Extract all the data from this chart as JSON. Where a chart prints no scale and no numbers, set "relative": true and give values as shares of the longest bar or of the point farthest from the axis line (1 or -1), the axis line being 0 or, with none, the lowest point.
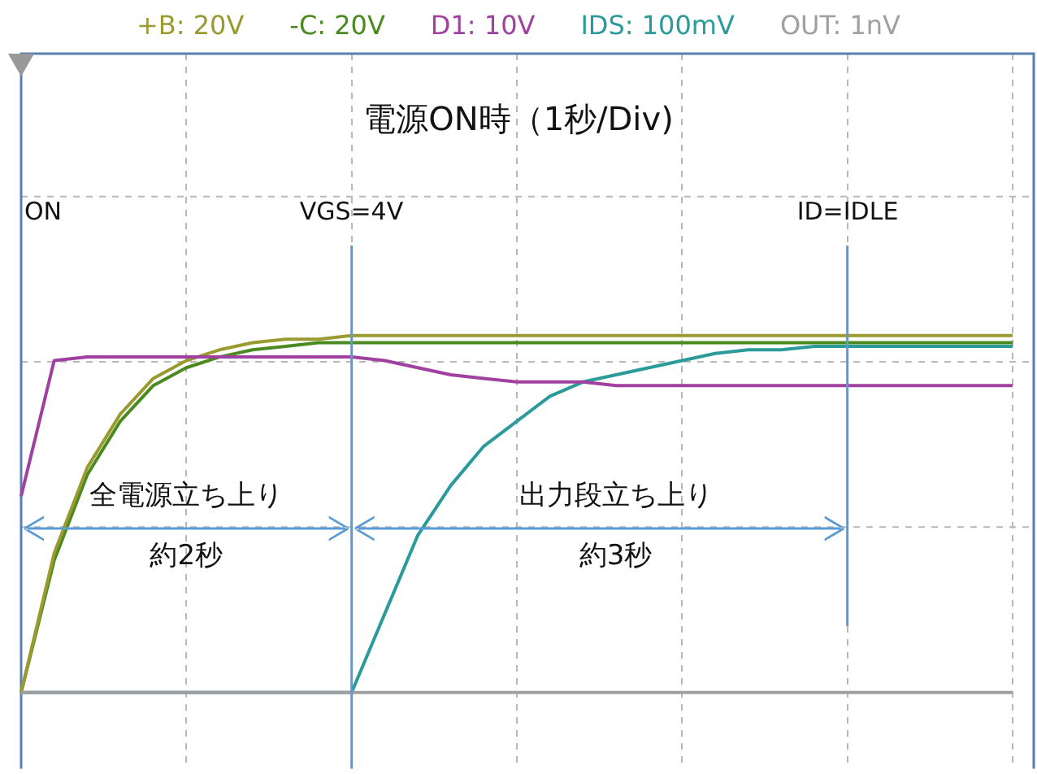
{
  "chart_data": {
    "type": "line",
    "title": "電源ON時（1秒/Div)",
    "relative": true,
    "grid": true,
    "marker": "none",
    "categories": [
      null,
      null,
      null,
      null,
      null,
      null,
      null,
      null,
      null,
      null,
      null,
      null,
      null,
      null,
      null,
      null,
      null,
      null,
      null,
      null,
      null,
      null,
      null,
      null,
      null,
      null,
      null,
      null,
      null,
      null,
      null
    ],
    "series": [
      {
        "name": "OUT: 1nV",
        "color": "#a0a0a0",
        "values": [
          0,
          0,
          0,
          0,
          0,
          0,
          0,
          0,
          0,
          0,
          0,
          0,
          0,
          0,
          0,
          0,
          0,
          0,
          0,
          0,
          0,
          0,
          0,
          0,
          0,
          0,
          0,
          0,
          0,
          0,
          0
        ]
      },
      {
        "name": "D1: 10V",
        "color": "#a040a0",
        "values": [
          0.55,
          0.93,
          0.94,
          0.94,
          0.94,
          0.94,
          0.94,
          0.94,
          0.94,
          0.94,
          0.94,
          0.93,
          0.91,
          0.89,
          0.88,
          0.87,
          0.87,
          0.87,
          0.86,
          0.86,
          0.86,
          0.86,
          0.86,
          0.86,
          0.86,
          0.86,
          0.86,
          0.86,
          0.86,
          0.86,
          0.86
        ]
      },
      {
        "name": "IDS: 100mV",
        "color": "#2a9a9a",
        "values": [
          0,
          0,
          0,
          0,
          0,
          0,
          0,
          0,
          0,
          0,
          0,
          0.22,
          0.44,
          0.58,
          0.69,
          0.76,
          0.83,
          0.87,
          0.89,
          0.91,
          0.93,
          0.95,
          0.96,
          0.96,
          0.97,
          0.97,
          0.97,
          0.97,
          0.97,
          0.97,
          0.97
        ]
      },
      {
        "name": "+B: 20V",
        "color": "#9a9a30",
        "values": [
          0,
          0.39,
          0.63,
          0.78,
          0.88,
          0.93,
          0.96,
          0.98,
          0.99,
          0.99,
          1,
          1,
          1,
          1,
          1,
          1,
          1,
          1,
          1,
          1,
          1,
          1,
          1,
          1,
          1,
          1,
          1,
          1,
          1,
          1,
          1
        ]
      },
      {
        "name": "-C: 20V",
        "color": "#4a8a20",
        "values": [
          0,
          0.37,
          0.61,
          0.76,
          0.86,
          0.91,
          0.94,
          0.96,
          0.97,
          0.98,
          0.98,
          0.98,
          0.98,
          0.98,
          0.98,
          0.98,
          0.98,
          0.98,
          0.98,
          0.98,
          0.98,
          0.98,
          0.98,
          0.98,
          0.98,
          0.98,
          0.98,
          0.98,
          0.98,
          0.98,
          0.98
        ]
      }
    ],
    "annotations": [
      "ON",
      "VGS=4V",
      "ID=IDLE",
      "全電源立ち上り",
      "約2秒",
      "出力段立ち上り",
      "約3秒"
    ]
  }
}
